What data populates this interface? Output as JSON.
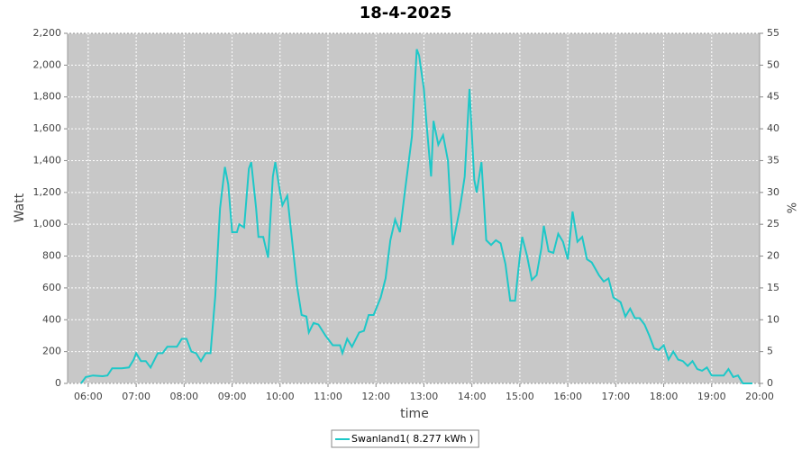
{
  "chart_data": {
    "type": "line",
    "title": "18-4-2025",
    "x_label": "time",
    "y_label": "Watt",
    "y2_label": "%",
    "xlim": [
      5.57,
      20
    ],
    "ylim": [
      0,
      2200
    ],
    "y2lim": [
      0,
      55
    ],
    "xticks": [
      {
        "value": 6,
        "label": "06:00"
      },
      {
        "value": 7,
        "label": "07:00"
      },
      {
        "value": 8,
        "label": "08:00"
      },
      {
        "value": 9,
        "label": "09:00"
      },
      {
        "value": 10,
        "label": "10:00"
      },
      {
        "value": 11,
        "label": "11:00"
      },
      {
        "value": 12,
        "label": "12:00"
      },
      {
        "value": 13,
        "label": "13:00"
      },
      {
        "value": 14,
        "label": "14:00"
      },
      {
        "value": 15,
        "label": "15:00"
      },
      {
        "value": 16,
        "label": "16:00"
      },
      {
        "value": 17,
        "label": "17:00"
      },
      {
        "value": 18,
        "label": "18:00"
      },
      {
        "value": 19,
        "label": "19:00"
      },
      {
        "value": 20,
        "label": "20:00"
      }
    ],
    "yticks": [
      0,
      200,
      400,
      600,
      800,
      {
        "value": 1000,
        "label": "1,000"
      },
      {
        "value": 1200,
        "label": "1,200"
      },
      {
        "value": 1400,
        "label": "1,400"
      },
      {
        "value": 1600,
        "label": "1,600"
      },
      {
        "value": 1800,
        "label": "1,800"
      },
      {
        "value": 2000,
        "label": "2,000"
      },
      {
        "value": 2200,
        "label": "2,200"
      }
    ],
    "y2ticks": [
      0,
      5,
      10,
      15,
      20,
      25,
      30,
      35,
      40,
      45,
      50,
      55
    ],
    "grid": true,
    "legend": "bottom",
    "x": [
      5.85,
      5.95,
      6.1,
      6.3,
      6.4,
      6.5,
      6.7,
      6.85,
      6.95,
      7.0,
      7.1,
      7.2,
      7.3,
      7.45,
      7.55,
      7.65,
      7.85,
      7.95,
      8.05,
      8.15,
      8.25,
      8.35,
      8.45,
      8.55,
      8.65,
      8.75,
      8.85,
      8.92,
      9.0,
      9.1,
      9.15,
      9.25,
      9.35,
      9.4,
      9.5,
      9.55,
      9.65,
      9.75,
      9.85,
      9.9,
      10.0,
      10.05,
      10.15,
      10.25,
      10.35,
      10.45,
      10.55,
      10.6,
      10.7,
      10.8,
      10.95,
      11.1,
      11.25,
      11.3,
      11.4,
      11.5,
      11.65,
      11.75,
      11.85,
      11.95,
      12.1,
      12.2,
      12.3,
      12.4,
      12.5,
      12.6,
      12.75,
      12.85,
      12.9,
      13.0,
      13.05,
      13.15,
      13.2,
      13.3,
      13.4,
      13.5,
      13.6,
      13.75,
      13.85,
      13.95,
      14.05,
      14.1,
      14.2,
      14.3,
      14.4,
      14.5,
      14.6,
      14.7,
      14.8,
      14.9,
      15.0,
      15.05,
      15.15,
      15.25,
      15.35,
      15.45,
      15.5,
      15.6,
      15.7,
      15.8,
      15.9,
      16.0,
      16.1,
      16.2,
      16.3,
      16.4,
      16.5,
      16.65,
      16.75,
      16.85,
      16.95,
      17.1,
      17.2,
      17.3,
      17.4,
      17.5,
      17.6,
      17.7,
      17.8,
      17.9,
      18.0,
      18.1,
      18.2,
      18.3,
      18.4,
      18.5,
      18.6,
      18.7,
      18.8,
      18.9,
      19.0,
      19.1,
      19.25,
      19.35,
      19.45,
      19.55,
      19.65,
      19.85
    ],
    "series": [
      {
        "name": "Swanland1( 8.277 kWh )",
        "color": "#1ec8c8",
        "values": [
          0,
          40,
          50,
          45,
          50,
          95,
          95,
          100,
          150,
          190,
          140,
          140,
          100,
          190,
          190,
          230,
          230,
          280,
          280,
          200,
          190,
          140,
          190,
          190,
          550,
          1100,
          1360,
          1250,
          950,
          950,
          1000,
          980,
          1350,
          1390,
          1100,
          920,
          920,
          790,
          1300,
          1390,
          1200,
          1120,
          1180,
          900,
          620,
          430,
          420,
          320,
          380,
          370,
          300,
          240,
          240,
          190,
          280,
          230,
          320,
          330,
          430,
          430,
          540,
          660,
          900,
          1030,
          950,
          1200,
          1550,
          2100,
          2060,
          1850,
          1650,
          1300,
          1650,
          1500,
          1560,
          1400,
          870,
          1100,
          1300,
          1850,
          1280,
          1200,
          1390,
          900,
          870,
          900,
          880,
          750,
          520,
          520,
          800,
          920,
          800,
          650,
          680,
          850,
          990,
          830,
          820,
          940,
          890,
          780,
          1080,
          890,
          920,
          780,
          760,
          680,
          640,
          660,
          540,
          510,
          420,
          470,
          410,
          410,
          370,
          300,
          220,
          210,
          240,
          150,
          200,
          150,
          140,
          110,
          140,
          90,
          80,
          100,
          50,
          50,
          50,
          90,
          40,
          50,
          0,
          0
        ]
      }
    ]
  }
}
